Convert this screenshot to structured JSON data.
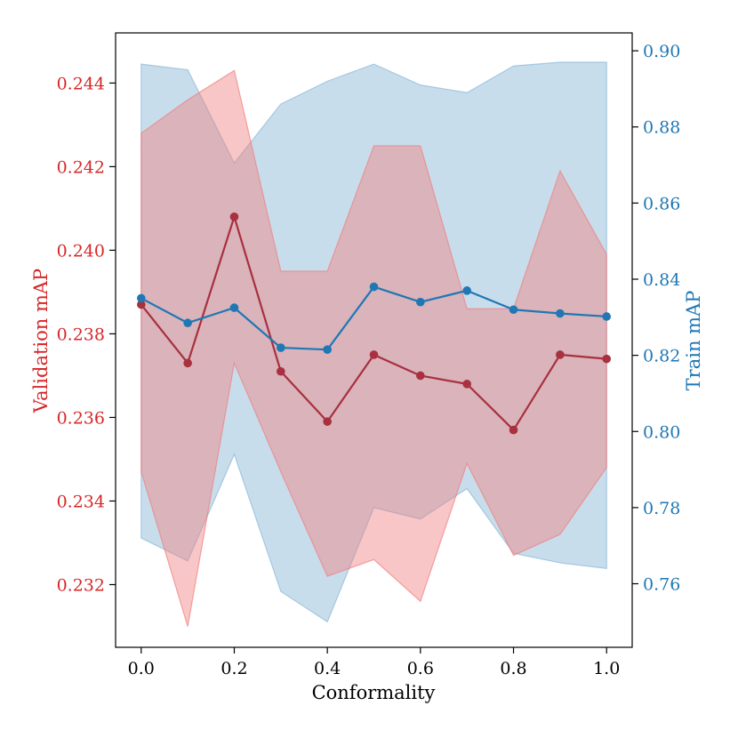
{
  "chart_data": {
    "type": "line",
    "xlabel": "Conformality",
    "ylabel_left": "Validation mAP",
    "ylabel_right": "Train mAP",
    "xlim": [
      -0.055,
      1.055
    ],
    "ylim_left": [
      0.2305,
      0.2452
    ],
    "ylim_right": [
      0.7433,
      0.9047
    ],
    "x_ticks": [
      0.0,
      0.2,
      0.4,
      0.6,
      0.8,
      1.0
    ],
    "x_tick_labels": [
      "0.0",
      "0.2",
      "0.4",
      "0.6",
      "0.8",
      "1.0"
    ],
    "left_ticks": [
      0.232,
      0.234,
      0.236,
      0.238,
      0.24,
      0.242,
      0.244
    ],
    "left_tick_labels": [
      "0.232",
      "0.234",
      "0.236",
      "0.238",
      "0.240",
      "0.242",
      "0.244"
    ],
    "right_ticks": [
      0.76,
      0.78,
      0.8,
      0.82,
      0.84,
      0.86,
      0.88,
      0.9
    ],
    "right_tick_labels": [
      "0.76",
      "0.78",
      "0.80",
      "0.82",
      "0.84",
      "0.86",
      "0.88",
      "0.90"
    ],
    "x": [
      0.0,
      0.1,
      0.2,
      0.3,
      0.4,
      0.5,
      0.6,
      0.7,
      0.8,
      0.9,
      1.0
    ],
    "series": [
      {
        "name": "Validation mAP",
        "axis": "left",
        "color": "#a8303f",
        "band_color": "#f08080",
        "values": [
          0.2387,
          0.2373,
          0.2408,
          0.2371,
          0.2359,
          0.2375,
          0.237,
          0.2368,
          0.2357,
          0.2375,
          0.2374
        ],
        "band_upper": [
          0.2428,
          0.2436,
          0.2443,
          0.2395,
          0.2395,
          0.2425,
          0.2425,
          0.2386,
          0.2386,
          0.2419,
          0.2399
        ],
        "band_lower": [
          0.2347,
          0.231,
          0.2373,
          0.2347,
          0.2322,
          0.2326,
          0.2316,
          0.2349,
          0.2327,
          0.2332,
          0.2348
        ]
      },
      {
        "name": "Train mAP",
        "axis": "right",
        "color": "#1f77b4",
        "band_color": "#8bb8d8",
        "values": [
          0.835,
          0.8285,
          0.8325,
          0.822,
          0.8215,
          0.838,
          0.834,
          0.837,
          0.832,
          0.831,
          0.8302
        ],
        "band_upper": [
          0.8965,
          0.895,
          0.8705,
          0.886,
          0.892,
          0.8965,
          0.891,
          0.889,
          0.896,
          0.897,
          0.897
        ],
        "band_lower": [
          0.772,
          0.766,
          0.794,
          0.758,
          0.75,
          0.78,
          0.777,
          0.785,
          0.768,
          0.7655,
          0.764
        ]
      }
    ]
  }
}
